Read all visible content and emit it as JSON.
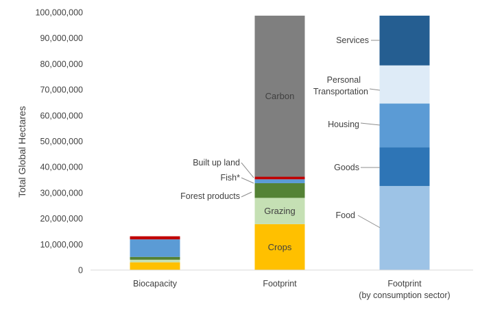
{
  "chart_data": {
    "type": "bar",
    "stacked": true,
    "ylabel": "Total Global Hectares",
    "ylim": [
      0,
      100000000
    ],
    "yticks": [
      "0",
      "10,000,000",
      "20,000,000",
      "30,000,000",
      "40,000,000",
      "50,000,000",
      "60,000,000",
      "70,000,000",
      "80,000,000",
      "90,000,000",
      "100,000,000"
    ],
    "grid": false,
    "categories": [
      {
        "label": "Biocapacity",
        "label2": ""
      },
      {
        "label": "Footprint",
        "label2": ""
      },
      {
        "label": "Footprint",
        "label2": "(by consumption sector)"
      }
    ],
    "bars": [
      {
        "category": "Biocapacity",
        "segments": [
          {
            "name": "Crops",
            "value": 3000000,
            "color": "#FFC000"
          },
          {
            "name": "Grazing",
            "value": 1000000,
            "color": "#C5E0B4"
          },
          {
            "name": "Forest products",
            "value": 1100000,
            "color": "#548235"
          },
          {
            "name": "Fish*",
            "value": 6800000,
            "color": "#5B9BD5"
          },
          {
            "name": "Built up land",
            "value": 1200000,
            "color": "#C00000"
          }
        ]
      },
      {
        "category": "Footprint",
        "segments": [
          {
            "name": "Crops",
            "value": 17800000,
            "color": "#FFC000",
            "label": "Crops"
          },
          {
            "name": "Grazing",
            "value": 10200000,
            "color": "#C5E0B4",
            "label": "Grazing"
          },
          {
            "name": "Forest products",
            "value": 5700000,
            "color": "#548235",
            "annotation": "Forest products"
          },
          {
            "name": "Fish*",
            "value": 1500000,
            "color": "#5B9BD5",
            "annotation": "Fish*"
          },
          {
            "name": "Built up land",
            "value": 1000000,
            "color": "#C00000",
            "annotation": "Built up land"
          },
          {
            "name": "Carbon",
            "value": 62500000,
            "color": "#7F7F7F",
            "label": "Carbon"
          }
        ]
      },
      {
        "category": "Footprint (by consumption sector)",
        "segments": [
          {
            "name": "Food",
            "value": 32600000,
            "color": "#9DC3E6",
            "annotation": "Food"
          },
          {
            "name": "Goods",
            "value": 15000000,
            "color": "#2E75B6",
            "annotation": "Goods"
          },
          {
            "name": "Housing",
            "value": 17000000,
            "color": "#5B9BD5",
            "annotation": "Housing"
          },
          {
            "name": "Personal Transportation",
            "value": 14800000,
            "color": "#DEEBF7",
            "annotation": "Personal",
            "annotation2": "Transportation"
          },
          {
            "name": "Services",
            "value": 19300000,
            "color": "#255E91",
            "annotation": "Services"
          }
        ]
      }
    ]
  }
}
